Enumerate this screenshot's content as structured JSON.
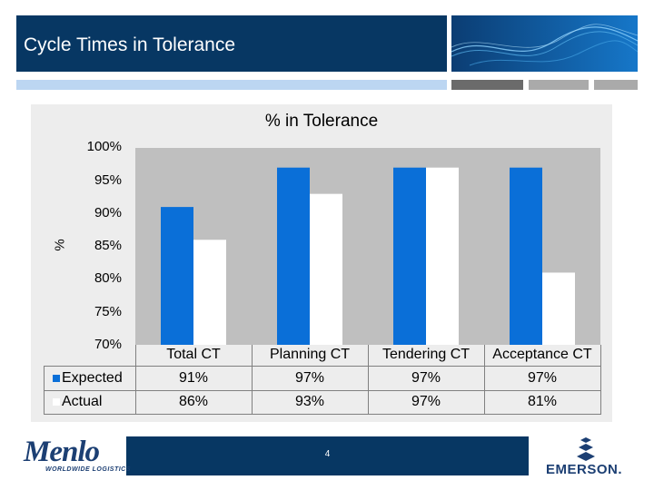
{
  "slide": {
    "title": "Cycle Times in Tolerance",
    "page_number": "4"
  },
  "logos": {
    "menlo_name": "Menlo",
    "menlo_sub": "WORLDWIDE LOGISTICS",
    "emerson_name": "EMERSON."
  },
  "colors": {
    "header": "#073763",
    "expected": "#0a6fd8",
    "actual": "#ffffff",
    "plot_background": "#bfbfbf"
  },
  "chart_data": {
    "type": "bar",
    "title": "% in Tolerance",
    "ylabel": "%",
    "xlabel": "",
    "ylim": [
      70,
      100
    ],
    "yticks": [
      "100%",
      "95%",
      "90%",
      "85%",
      "80%",
      "75%",
      "70%"
    ],
    "ytick_values": [
      100,
      95,
      90,
      85,
      80,
      75,
      70
    ],
    "categories": [
      "Total CT",
      "Planning CT",
      "Tendering CT",
      "Acceptance CT"
    ],
    "series": [
      {
        "name": "Expected",
        "values": [
          91,
          97,
          97,
          97
        ],
        "labels": [
          "91%",
          "97%",
          "97%",
          "97%"
        ]
      },
      {
        "name": "Actual",
        "values": [
          86,
          93,
          97,
          81
        ],
        "labels": [
          "86%",
          "93%",
          "97%",
          "81%"
        ]
      }
    ],
    "legend": "data-table"
  }
}
